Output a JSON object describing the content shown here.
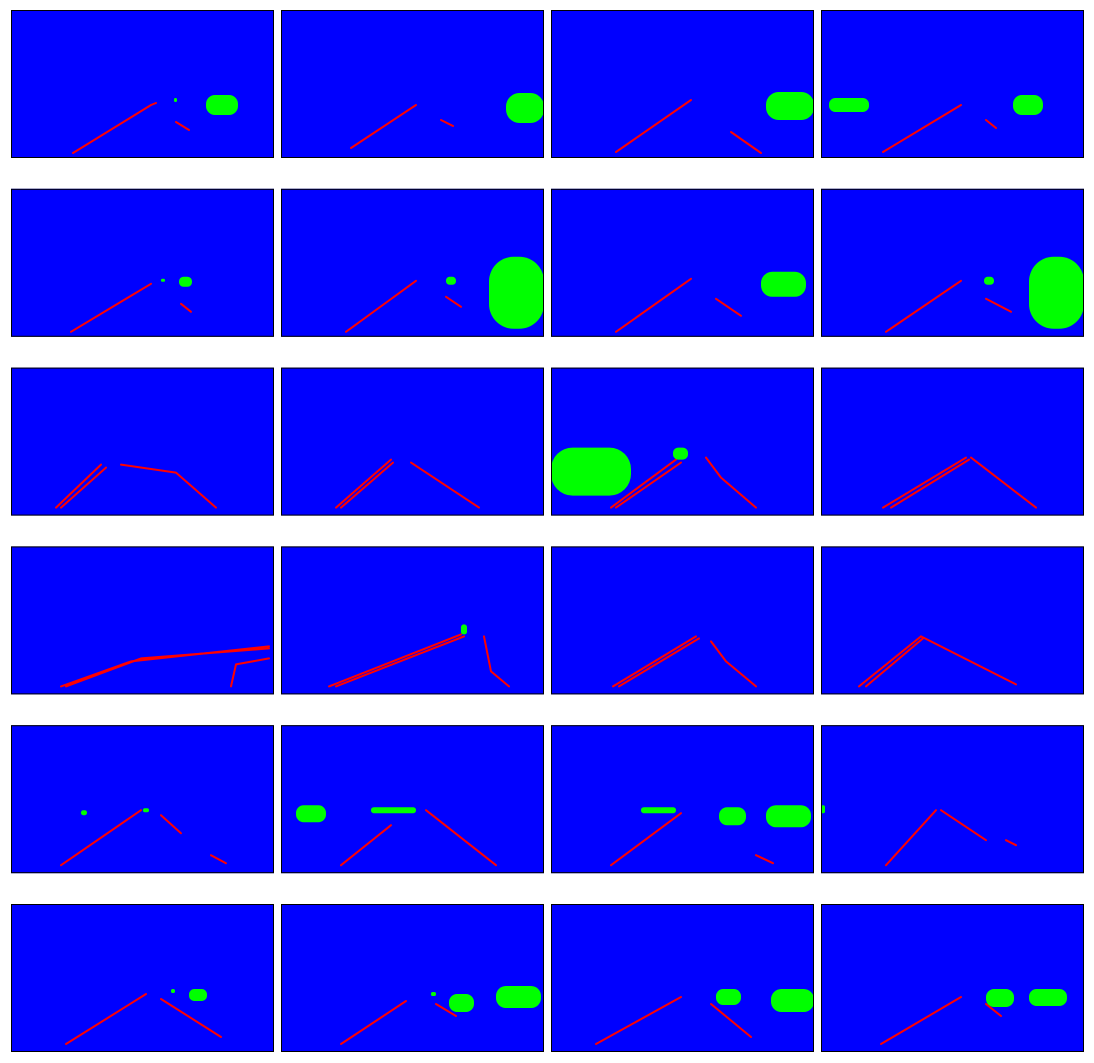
{
  "background": "#0000ff",
  "lane": "#ff0000",
  "vehicle": "#00ff00"
}
